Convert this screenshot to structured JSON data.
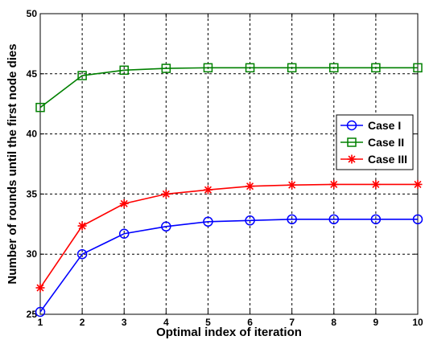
{
  "chart_data": {
    "type": "line",
    "title": "",
    "xlabel": "Optimal index of iteration",
    "ylabel": "Number of rounds until the first node dies",
    "x": [
      1,
      2,
      3,
      4,
      5,
      6,
      7,
      8,
      9,
      10
    ],
    "xlim": [
      1,
      10
    ],
    "ylim": [
      25,
      50
    ],
    "xticks": [
      "1",
      "2",
      "3",
      "4",
      "5",
      "6",
      "7",
      "8",
      "9",
      "10"
    ],
    "yticks": [
      "25",
      "30",
      "35",
      "40",
      "45",
      "50"
    ],
    "grid": true,
    "legend_position": "right",
    "series": [
      {
        "name": "Case I",
        "color": "#0000ff",
        "marker": "circle",
        "values": [
          25.2,
          30.0,
          31.7,
          32.3,
          32.7,
          32.8,
          32.9,
          32.9,
          32.9,
          32.9
        ]
      },
      {
        "name": "Case II",
        "color": "#008000",
        "marker": "square",
        "values": [
          42.2,
          44.85,
          45.3,
          45.45,
          45.5,
          45.5,
          45.5,
          45.5,
          45.5,
          45.5
        ]
      },
      {
        "name": "Case III",
        "color": "#ff0000",
        "marker": "asterisk",
        "values": [
          27.2,
          32.35,
          34.2,
          35.0,
          35.35,
          35.65,
          35.75,
          35.8,
          35.8,
          35.8
        ]
      }
    ]
  }
}
